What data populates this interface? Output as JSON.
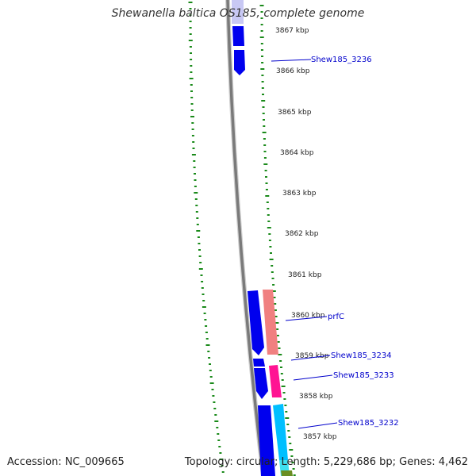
{
  "title": "Shewanella baltica OS185, complete genome",
  "footer": {
    "accession": "Accession: NC_009665",
    "summary": "Topology: circular; Length: 5,229,686 bp; Genes: 4,462"
  },
  "map": {
    "kbp_ticks": [
      "3867 kbp",
      "3866 kbp",
      "3865 kbp",
      "3864 kbp",
      "3863 kbp",
      "3862 kbp",
      "3861 kbp",
      "3860 kbp",
      "3859 kbp",
      "3858 kbp",
      "3857 kbp"
    ],
    "gene_labels": [
      "Shew185_3236",
      "prfC",
      "Shew185_3234",
      "Shew185_3233",
      "Shew185_3232"
    ],
    "colors": {
      "backbone": "#8a8a8a",
      "gc_track": "#1a8a1a",
      "gene_blue": "#0000ee",
      "gene_salmon": "#f08080",
      "gene_pink": "#ff1493",
      "gene_cyan": "#00bfff",
      "gene_olive": "#6b8e23",
      "label_line": "#0000cc"
    }
  }
}
